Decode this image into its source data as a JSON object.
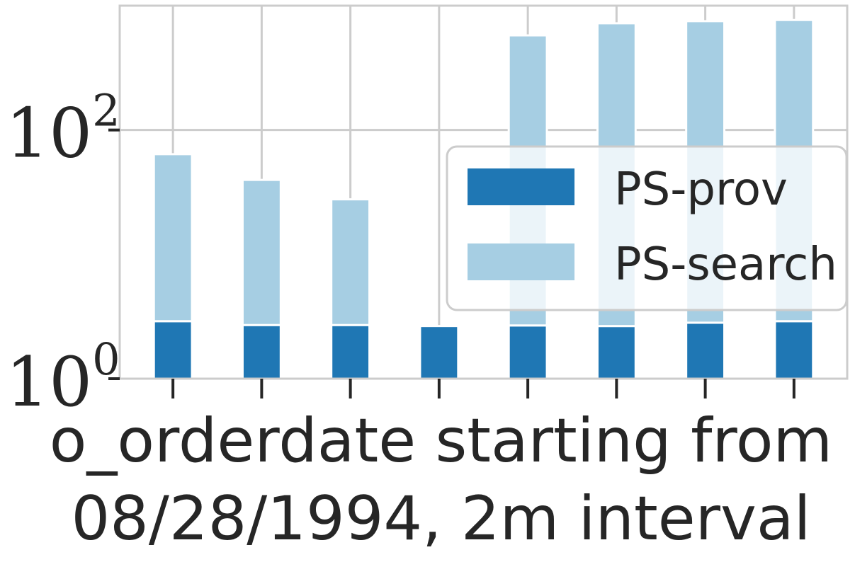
{
  "chart_data": {
    "type": "bar",
    "stacked": true,
    "yscale": "log",
    "ylim": [
      1,
      1000
    ],
    "yticks": [
      {
        "value": 1,
        "base": "10",
        "exp": "0"
      },
      {
        "value": 100,
        "base": "10",
        "exp": "2"
      }
    ],
    "categories": [
      "1",
      "2",
      "3",
      "4",
      "5",
      "6",
      "7",
      "8"
    ],
    "show_category_labels": false,
    "series": [
      {
        "name": "PS-prov",
        "color": "#1f77b4",
        "values": [
          1.9,
          1.7,
          1.7,
          1.65,
          1.68,
          1.65,
          1.82,
          1.9
        ]
      },
      {
        "name": "PS-search",
        "color": "#a6cee3",
        "values": [
          61,
          37,
          25,
          0,
          574,
          719,
          748,
          764
        ]
      }
    ],
    "xlabel": [
      "o_orderdate starting from",
      "08/28/1994, 2m interval"
    ],
    "ylabel": "",
    "title": "",
    "grid": true,
    "legend": "center-right"
  }
}
